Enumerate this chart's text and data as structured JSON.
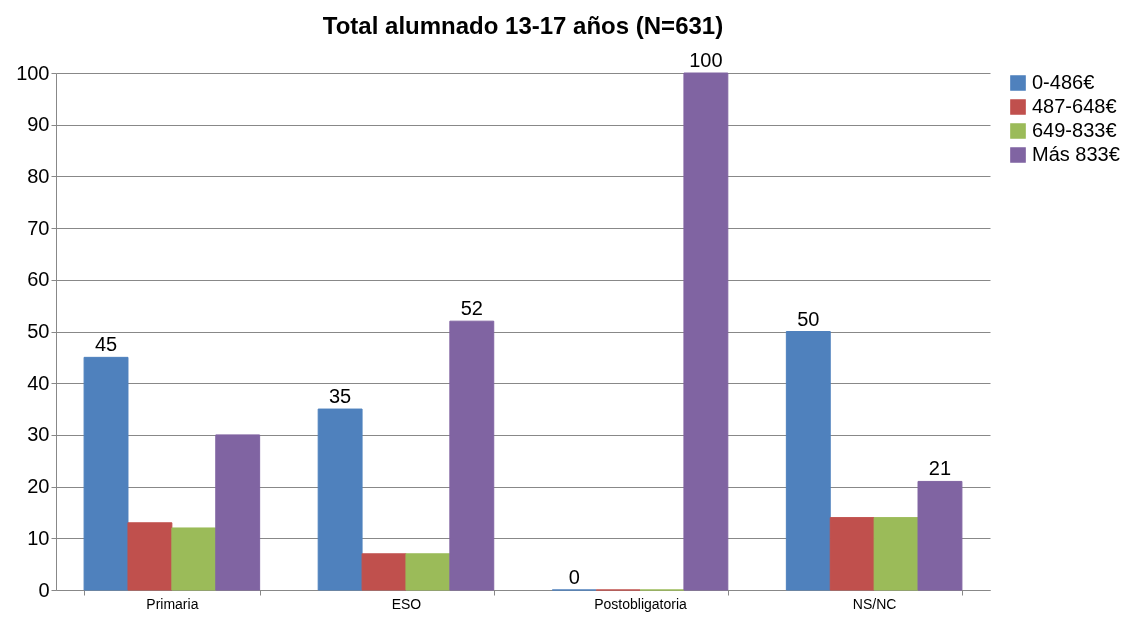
{
  "chart_data": {
    "type": "bar",
    "title": "Total alumnado 13-17 años (N=631)",
    "categories": [
      "Primaria",
      "ESO",
      "Postobligatoria",
      "NS/NC"
    ],
    "series": [
      {
        "name": "0-486€",
        "color": "#4f81bd",
        "values": [
          45,
          35,
          0,
          50
        ],
        "value_labels": [
          "45",
          "35",
          "0",
          "50"
        ]
      },
      {
        "name": "487-648€",
        "color": "#c0504d",
        "values": [
          13,
          7,
          0,
          14
        ]
      },
      {
        "name": "649-833€",
        "color": "#9bbb59",
        "values": [
          12,
          7,
          0,
          14
        ]
      },
      {
        "name": "Más 833€",
        "color": "#8064a2",
        "values": [
          30,
          52,
          100,
          21
        ],
        "value_labels": [
          null,
          "52",
          "100",
          "21"
        ]
      }
    ],
    "ylim": [
      0,
      100
    ],
    "yticks": [
      0,
      10,
      20,
      30,
      40,
      50,
      60,
      70,
      80,
      90,
      100
    ],
    "grid": "y",
    "legend": "right"
  }
}
